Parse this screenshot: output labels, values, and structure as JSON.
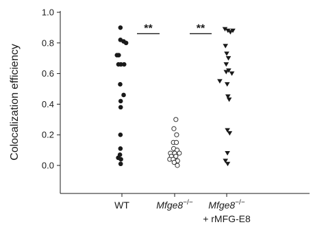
{
  "chart_data": {
    "type": "scatter",
    "ylabel": "Colocalization efficiency",
    "ylim": [
      0.0,
      1.0
    ],
    "yticks": [
      "0.0",
      "0.2",
      "0.4",
      "0.6",
      "0.8",
      "1.0"
    ],
    "categories": [
      {
        "main": "WT",
        "italic": false,
        "sup": "",
        "line2": ""
      },
      {
        "main": "Mfge8",
        "italic": true,
        "sup": "−/−",
        "line2": ""
      },
      {
        "main": "Mfge8",
        "italic": true,
        "sup": "−/−",
        "line2": "+ rMFG-E8"
      }
    ],
    "series": [
      {
        "category_index": 0,
        "marker": "filled-circle",
        "points": [
          {
            "x": -0.06,
            "y": 0.9
          },
          {
            "x": -0.06,
            "y": 0.82
          },
          {
            "x": 0.07,
            "y": 0.81
          },
          {
            "x": 0.17,
            "y": 0.8
          },
          {
            "x": -0.2,
            "y": 0.72
          },
          {
            "x": -0.13,
            "y": 0.72
          },
          {
            "x": -0.14,
            "y": 0.66
          },
          {
            "x": -0.04,
            "y": 0.66
          },
          {
            "x": 0.09,
            "y": 0.66
          },
          {
            "x": -0.07,
            "y": 0.53
          },
          {
            "x": 0.07,
            "y": 0.46
          },
          {
            "x": -0.05,
            "y": 0.42
          },
          {
            "x": -0.05,
            "y": 0.38
          },
          {
            "x": -0.06,
            "y": 0.2
          },
          {
            "x": -0.06,
            "y": 0.11
          },
          {
            "x": -0.08,
            "y": 0.07
          },
          {
            "x": -0.15,
            "y": 0.05
          },
          {
            "x": -0.04,
            "y": 0.04
          },
          {
            "x": -0.05,
            "y": 0.01
          }
        ]
      },
      {
        "category_index": 1,
        "marker": "open-circle",
        "points": [
          {
            "x": 0.05,
            "y": 0.3
          },
          {
            "x": -0.03,
            "y": 0.24
          },
          {
            "x": 0.08,
            "y": 0.2
          },
          {
            "x": -0.05,
            "y": 0.15
          },
          {
            "x": 0.07,
            "y": 0.15
          },
          {
            "x": -0.04,
            "y": 0.11
          },
          {
            "x": 0.1,
            "y": 0.1
          },
          {
            "x": -0.17,
            "y": 0.08
          },
          {
            "x": 0.0,
            "y": 0.08
          },
          {
            "x": 0.19,
            "y": 0.08
          },
          {
            "x": -0.13,
            "y": 0.06
          },
          {
            "x": 0.05,
            "y": 0.06
          },
          {
            "x": -0.2,
            "y": 0.04
          },
          {
            "x": -0.06,
            "y": 0.04
          },
          {
            "x": 0.12,
            "y": 0.03
          },
          {
            "x": -0.02,
            "y": 0.02
          },
          {
            "x": 0.11,
            "y": 0.0
          }
        ]
      },
      {
        "category_index": 2,
        "marker": "filled-triangle-down",
        "points": [
          {
            "x": -0.07,
            "y": 0.89
          },
          {
            "x": 0.05,
            "y": 0.88
          },
          {
            "x": 0.15,
            "y": 0.87
          },
          {
            "x": 0.25,
            "y": 0.88
          },
          {
            "x": -0.05,
            "y": 0.78
          },
          {
            "x": 0.0,
            "y": 0.73
          },
          {
            "x": 0.07,
            "y": 0.7
          },
          {
            "x": -0.02,
            "y": 0.66
          },
          {
            "x": 0.08,
            "y": 0.62
          },
          {
            "x": -0.02,
            "y": 0.61
          },
          {
            "x": 0.21,
            "y": 0.6
          },
          {
            "x": -0.28,
            "y": 0.55
          },
          {
            "x": 0.02,
            "y": 0.53
          },
          {
            "x": 0.05,
            "y": 0.45
          },
          {
            "x": 0.1,
            "y": 0.43
          },
          {
            "x": 0.03,
            "y": 0.23
          },
          {
            "x": 0.12,
            "y": 0.21
          },
          {
            "x": 0.03,
            "y": 0.08
          },
          {
            "x": -0.05,
            "y": 0.03
          },
          {
            "x": 0.04,
            "y": 0.01
          }
        ]
      }
    ],
    "significance": [
      {
        "from": 0,
        "to": 1,
        "y": 0.86,
        "label": "**"
      },
      {
        "from": 1,
        "to": 2,
        "y": 0.86,
        "label": "**"
      }
    ]
  }
}
